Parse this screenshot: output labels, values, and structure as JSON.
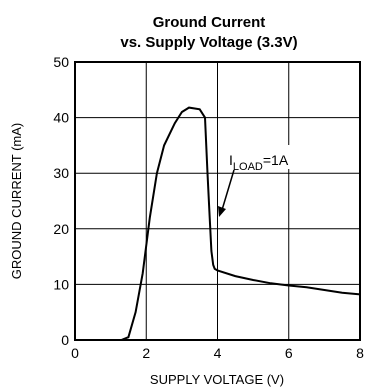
{
  "chart_data": {
    "type": "line",
    "title": "Ground Current",
    "subtitle": "vs. Supply Voltage (3.3V)",
    "xlabel": "SUPPLY VOLTAGE (V)",
    "ylabel": "GROUND CURRENT (mA)",
    "xlim": [
      0,
      8
    ],
    "ylim": [
      0,
      50
    ],
    "xticks": [
      "0",
      "2",
      "4",
      "6",
      "8"
    ],
    "yticks": [
      "0",
      "10",
      "20",
      "30",
      "40",
      "50"
    ],
    "grid": true,
    "annotation": {
      "prefix": "I",
      "sub": "LOAD",
      "suffix": "=1A"
    },
    "series": [
      {
        "x": [
          1.0,
          1.3,
          1.5,
          1.7,
          1.9,
          2.1,
          2.3,
          2.5,
          2.8,
          3.0,
          3.2,
          3.5,
          3.65,
          3.72,
          3.78,
          3.83,
          3.88,
          3.92,
          4.0,
          4.5,
          5.0,
          5.5,
          6.0,
          6.5,
          7.0,
          7.5,
          8.0
        ],
        "y": [
          0,
          0,
          0.5,
          5,
          12,
          22,
          30,
          35,
          39,
          41,
          41.8,
          41.5,
          40,
          30,
          22,
          16,
          13.5,
          12.8,
          12.5,
          11.5,
          10.8,
          10.2,
          9.8,
          9.5,
          9.0,
          8.5,
          8.2
        ]
      }
    ]
  }
}
